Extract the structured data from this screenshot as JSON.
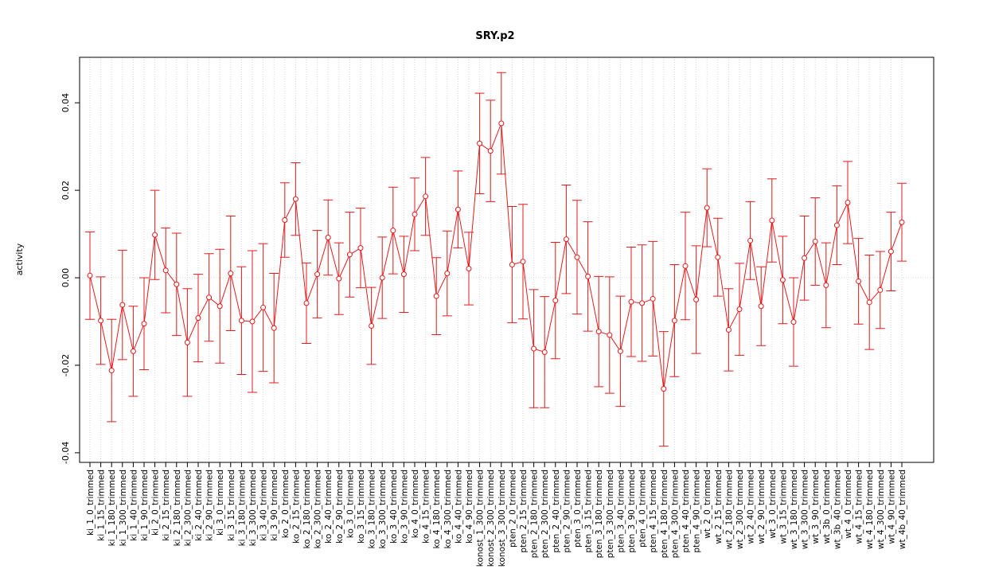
{
  "chart_data": {
    "type": "errorbar-line",
    "title": "SRY.p2",
    "y_label": "activity",
    "color": "#e41a1c",
    "categories": [
      "ki_1_0_trimmed",
      "ki_1_15_trimmed",
      "ki_1_180_trimmed",
      "ki_1_300_trimmed",
      "ki_1_40_trimmed",
      "ki_1_90_trimmed",
      "ki_2_0_trimmed",
      "ki_2_15_trimmed",
      "ki_2_180_trimmed",
      "ki_2_300_trimmed",
      "ki_2_40_trimmed",
      "ki_2_90_trimmed",
      "ki_3_0_trimmed",
      "ki_3_15_trimmed",
      "ki_3_180_trimmed",
      "ki_3_300_trimmed",
      "ki_3_40_trimmed",
      "ki_3_90_trimmed",
      "ko_2_0_trimmed",
      "ko_2_15_trimmed",
      "ko_2_180_trimmed",
      "ko_2_300_trimmed",
      "ko_2_40_trimmed",
      "ko_2_90_trimmed",
      "ko_3_0_trimmed",
      "ko_3_15_trimmed",
      "ko_3_180_trimmed",
      "ko_3_300_trimmed",
      "ko_3_40_trimmed",
      "ko_3_90_trimmed",
      "ko_4_0_trimmed",
      "ko_4_15_trimmed",
      "ko_4_180_trimmed",
      "ko_4_300_trimmed",
      "ko_4_40_trimmed",
      "ko_4_90_trimmed",
      "konost_1_300_trimmed",
      "konost_2_300_trimmed",
      "konost_3_300_trimmed",
      "pten_2_0_trimmed",
      "pten_2_15_trimmed",
      "pten_2_180_trimmed",
      "pten_2_300_trimmed",
      "pten_2_40_trimmed",
      "pten_2_90_trimmed",
      "pten_3_0_trimmed",
      "pten_3_15_trimmed",
      "pten_3_180_trimmed",
      "pten_3_300_trimmed",
      "pten_3_40_trimmed",
      "pten_3_90_trimmed",
      "pten_4_0_trimmed",
      "pten_4_15_trimmed",
      "pten_4_180_trimmed",
      "pten_4_300_trimmed",
      "pten_4_40_trimmed",
      "pten_4_90_trimmed",
      "wt_2_0_trimmed",
      "wt_2_15_trimmed",
      "wt_2_180_trimmed",
      "wt_2_300_trimmed",
      "wt_2_40_trimmed",
      "wt_2_90_trimmed",
      "wt_3_0_trimmed",
      "wt_3_15_trimmed",
      "wt_3_180_trimmed",
      "wt_3_300_trimmed",
      "wt_3_90_trimmed",
      "wt_3b_0_trimmed",
      "wt_3b_40_trimmed",
      "wt_4_0_trimmed",
      "wt_4_15_trimmed",
      "wt_4_180_trimmed",
      "wt_4_300_trimmed",
      "wt_4_90_trimmed",
      "wt_4b_40_trimmed"
    ],
    "values": [
      0.0005,
      -0.0098,
      -0.0212,
      -0.0062,
      -0.0168,
      -0.0105,
      0.0098,
      0.0017,
      -0.0015,
      -0.0148,
      -0.0092,
      -0.0045,
      -0.0065,
      0.001,
      -0.0098,
      -0.01,
      -0.0068,
      -0.0115,
      0.0132,
      0.018,
      -0.0058,
      0.0008,
      0.0092,
      -0.0002,
      0.0053,
      0.0068,
      -0.011,
      0.0,
      0.0108,
      0.0008,
      0.0145,
      0.0186,
      -0.0042,
      0.001,
      0.0156,
      0.0021,
      0.0307,
      0.029,
      0.0353,
      0.003,
      0.0037,
      -0.0162,
      -0.017,
      -0.0052,
      0.0088,
      0.0047,
      0.0003,
      -0.0123,
      -0.0131,
      -0.0168,
      -0.0055,
      -0.0058,
      -0.0048,
      -0.0254,
      -0.0098,
      0.0027,
      -0.005,
      0.016,
      0.0047,
      -0.0119,
      -0.0072,
      0.0085,
      -0.0065,
      0.0131,
      -0.0005,
      -0.0101,
      0.0045,
      0.0083,
      -0.0017,
      0.012,
      0.0172,
      -0.0008,
      -0.0056,
      -0.0028,
      0.006,
      0.0127
    ],
    "errors": [
      0.01,
      0.01,
      0.0117,
      0.0125,
      0.0103,
      0.0105,
      0.0102,
      0.0097,
      0.0117,
      0.0123,
      0.01,
      0.01,
      0.013,
      0.0131,
      0.0123,
      0.0162,
      0.0146,
      0.0125,
      0.0085,
      0.0083,
      0.0092,
      0.01,
      0.0086,
      0.0082,
      0.0097,
      0.0091,
      0.0088,
      0.0093,
      0.0099,
      0.0087,
      0.0083,
      0.0089,
      0.0088,
      0.0097,
      0.0088,
      0.0083,
      0.0115,
      0.0116,
      0.0116,
      0.0133,
      0.0131,
      0.0135,
      0.0127,
      0.0133,
      0.0124,
      0.013,
      0.0125,
      0.0126,
      0.0133,
      0.0126,
      0.0125,
      0.0133,
      0.0131,
      0.0131,
      0.0128,
      0.0123,
      0.0123,
      0.0089,
      0.0089,
      0.0094,
      0.0105,
      0.0089,
      0.009,
      0.0095,
      0.01,
      0.0101,
      0.0096,
      0.01,
      0.0097,
      0.009,
      0.0094,
      0.0098,
      0.0108,
      0.0088,
      0.009,
      0.0089
    ],
    "ylim": [
      -0.0422,
      0.0504
    ],
    "yticks": [
      -0.04,
      -0.02,
      {
        "value": 0,
        "label": "0.00"
      },
      0.02,
      0.04
    ],
    "grid": true
  }
}
